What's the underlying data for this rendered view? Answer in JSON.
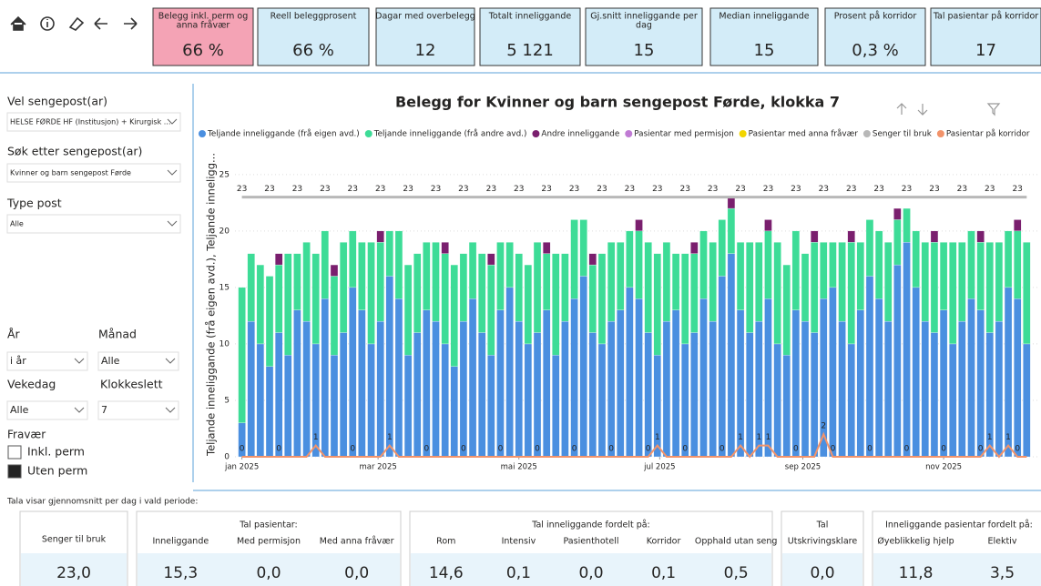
{
  "kpis": [
    {
      "label": [
        "Belegg inkl. perm og",
        "anna fråvær"
      ],
      "value": "66 %"
    },
    {
      "label": [
        "Reell beleggprosent"
      ],
      "value": "66 %"
    },
    {
      "label": [
        "Dagar med overbelegg"
      ],
      "value": "12"
    },
    {
      "label": [
        "Totalt inneliggande"
      ],
      "value": "5 121"
    },
    {
      "label": [
        "Gj.snitt inneliggande per",
        "dag"
      ],
      "value": "15"
    },
    {
      "label": [
        "Median inneliggande"
      ],
      "value": "15"
    },
    {
      "label": [
        "Prosent på korridor"
      ],
      "value": "0,3 %"
    },
    {
      "label": [
        "Tal pasientar på korridor"
      ],
      "value": "17"
    }
  ],
  "filters": {
    "sengepost": {
      "label": "Vel sengepost(ar)",
      "value": "HELSE FØRDE HF (Institusjon) + Kirurgisk ..."
    },
    "sok": {
      "label": "Søk etter sengepost(ar)",
      "value": "Kvinner og barn sengepost Førde"
    },
    "type": {
      "label": "Type post",
      "value": "Alle"
    },
    "ar": {
      "label": "År",
      "value": "i år"
    },
    "manad": {
      "label": "Månad",
      "value": "Alle"
    },
    "vekedag": {
      "label": "Vekedag",
      "value": "Alle"
    },
    "klokkeslett": {
      "label": "Klokkeslett",
      "value": "7"
    },
    "fravaer": {
      "label": "Fravær",
      "options": [
        "Inkl. perm",
        "Uten perm"
      ]
    }
  },
  "chart_data": {
    "type": "bar",
    "title": "Belegg for Kvinner og barn sengepost Førde, klokka 7",
    "y_label": "Teljande inneliggande (frå eigen avd.), Teljande inneligg...",
    "x": [
      1,
      5,
      9,
      13,
      17,
      21,
      25,
      29,
      33,
      37,
      41,
      45,
      49,
      53,
      57,
      61,
      65,
      69,
      73,
      77,
      81,
      85,
      89,
      93,
      97,
      101,
      105,
      109,
      113,
      117,
      121,
      125,
      129,
      133,
      137,
      141,
      145,
      149,
      153,
      157,
      161,
      165,
      169,
      173,
      177,
      181,
      185,
      189,
      193,
      197,
      201,
      205,
      209,
      213,
      217,
      221,
      225,
      229,
      233,
      237,
      241,
      245,
      249,
      253,
      257,
      261,
      265,
      269,
      273,
      277,
      281,
      285,
      289,
      293,
      297,
      301,
      305,
      309,
      313,
      317,
      321,
      325,
      329,
      333,
      337,
      341
    ],
    "xlim": [
      -2,
      346
    ],
    "xticks": [
      {
        "value": 1,
        "label": "jan 2025"
      },
      {
        "value": 60,
        "label": "mar 2025"
      },
      {
        "value": 121,
        "label": "mai 2025"
      },
      {
        "value": 182,
        "label": "jul 2025"
      },
      {
        "value": 244,
        "label": "sep 2025"
      },
      {
        "value": 305,
        "label": "nov 2025"
      }
    ],
    "ylim": [
      0,
      27
    ],
    "yticks": [
      0,
      5,
      10,
      15,
      20,
      25
    ],
    "grid": true,
    "series": [
      {
        "name": "Teljande inneliggande (frå eigen avd.)",
        "color": "#4a8fe0",
        "values": [
          3,
          12,
          10,
          8,
          11,
          9,
          13,
          12,
          10,
          14,
          9,
          11,
          15,
          13,
          10,
          12,
          16,
          14,
          9,
          11,
          13,
          12,
          10,
          8,
          12,
          14,
          11,
          9,
          13,
          15,
          12,
          10,
          11,
          13,
          9,
          12,
          14,
          16,
          11,
          10,
          12,
          13,
          15,
          14,
          11,
          9,
          12,
          13,
          10,
          11,
          14,
          12,
          16,
          18,
          13,
          11,
          12,
          14,
          10,
          9,
          13,
          12,
          11,
          14,
          15,
          12,
          10,
          13,
          16,
          14,
          12,
          17,
          19,
          15,
          12,
          11,
          13,
          10,
          12,
          14,
          13,
          11,
          12,
          15,
          14,
          10
        ]
      },
      {
        "name": "Teljande inneliggande (frå andre avd.)",
        "color": "#3ddc97",
        "values": [
          12,
          6,
          7,
          8,
          6,
          9,
          5,
          7,
          8,
          6,
          7,
          8,
          5,
          6,
          9,
          7,
          4,
          6,
          8,
          7,
          6,
          7,
          8,
          9,
          6,
          5,
          7,
          8,
          6,
          4,
          6,
          7,
          8,
          5,
          9,
          6,
          7,
          5,
          6,
          8,
          7,
          6,
          5,
          6,
          8,
          9,
          7,
          5,
          8,
          7,
          6,
          7,
          5,
          4,
          6,
          8,
          7,
          6,
          9,
          8,
          7,
          6,
          8,
          5,
          4,
          7,
          9,
          6,
          5,
          6,
          7,
          4,
          3,
          5,
          7,
          8,
          6,
          9,
          7,
          6,
          6,
          8,
          7,
          5,
          6,
          9
        ]
      },
      {
        "name": "Andre inneliggande",
        "color": "#7a1f6e",
        "values": [
          0,
          0,
          0,
          0,
          1,
          0,
          0,
          0,
          0,
          0,
          1,
          0,
          0,
          0,
          0,
          1,
          0,
          0,
          0,
          0,
          0,
          0,
          1,
          0,
          0,
          0,
          0,
          1,
          0,
          0,
          0,
          0,
          0,
          1,
          0,
          0,
          0,
          0,
          1,
          0,
          0,
          0,
          0,
          1,
          0,
          0,
          0,
          0,
          0,
          1,
          0,
          0,
          0,
          1,
          0,
          0,
          0,
          1,
          0,
          0,
          0,
          0,
          1,
          0,
          0,
          0,
          1,
          0,
          0,
          0,
          0,
          1,
          0,
          0,
          0,
          1,
          0,
          0,
          0,
          0,
          1,
          0,
          0,
          0,
          1,
          0
        ]
      },
      {
        "name": "Pasientar med permisjon",
        "color": "#c07bd4",
        "values": [
          0,
          0,
          0,
          0,
          0,
          0,
          0,
          0,
          0,
          0,
          0,
          0,
          0,
          0,
          0,
          0,
          0,
          0,
          0,
          0,
          0,
          0,
          0,
          0,
          0,
          0,
          0,
          0,
          0,
          0,
          0,
          0,
          0,
          0,
          0,
          0,
          0,
          0,
          0,
          0,
          0,
          0,
          0,
          0,
          0,
          0,
          0,
          0,
          0,
          0,
          0,
          0,
          0,
          0,
          0,
          0,
          0,
          0,
          0,
          0,
          0,
          0,
          0,
          0,
          0,
          0,
          0,
          0,
          0,
          0,
          0,
          0,
          0,
          0,
          0,
          0,
          0,
          0,
          0,
          0,
          0,
          0,
          0,
          0,
          0,
          0
        ]
      },
      {
        "name": "Pasientar med anna fråvær",
        "color": "#f2d500",
        "values": [
          0,
          0,
          0,
          0,
          0,
          0,
          0,
          0,
          0,
          0,
          0,
          0,
          0,
          0,
          0,
          0,
          0,
          0,
          0,
          0,
          0,
          0,
          0,
          0,
          0,
          0,
          0,
          0,
          0,
          0,
          0,
          0,
          0,
          0,
          0,
          0,
          0,
          0,
          0,
          0,
          0,
          0,
          0,
          0,
          0,
          0,
          0,
          0,
          0,
          0,
          0,
          0,
          0,
          0,
          0,
          0,
          0,
          0,
          0,
          0,
          0,
          0,
          0,
          0,
          0,
          0,
          0,
          0,
          0,
          0,
          0,
          0,
          0,
          0,
          0,
          0,
          0,
          0,
          0,
          0,
          0,
          0,
          0,
          0,
          0,
          0
        ]
      },
      {
        "name": "Senger til bruk",
        "color": "#b8b8b8",
        "values": [
          23,
          23,
          23,
          23,
          23,
          23,
          23,
          23,
          23,
          23,
          23,
          23,
          23,
          23,
          23,
          23,
          23,
          23,
          23,
          23,
          23,
          23,
          23,
          23,
          23,
          23,
          23,
          23,
          23,
          23,
          23,
          23,
          23,
          23,
          23,
          23,
          23,
          23,
          23,
          23,
          23,
          23,
          23,
          23,
          23,
          23,
          23,
          23,
          23,
          23,
          23,
          23,
          23,
          23,
          23,
          23,
          23,
          23,
          23,
          23,
          23,
          23,
          23,
          23,
          23,
          23,
          23,
          23,
          23,
          23,
          23,
          23,
          23,
          23,
          23,
          23,
          23,
          23,
          23,
          23,
          23,
          23,
          23,
          23,
          23,
          23
        ]
      },
      {
        "name": "Pasientar på korridor",
        "color": "#f2936a",
        "values": [
          0,
          0,
          0,
          0,
          0,
          0,
          0,
          0,
          1,
          0,
          0,
          0,
          0,
          0,
          0,
          0,
          1,
          0,
          0,
          0,
          0,
          0,
          0,
          0,
          0,
          0,
          0,
          0,
          0,
          0,
          0,
          0,
          0,
          0,
          0,
          0,
          0,
          0,
          0,
          0,
          0,
          0,
          0,
          0,
          0,
          1,
          0,
          0,
          0,
          0,
          0,
          0,
          0,
          0,
          1,
          0,
          1,
          1,
          0,
          0,
          0,
          0,
          0,
          2,
          0,
          0,
          0,
          0,
          0,
          0,
          0,
          0,
          0,
          0,
          0,
          0,
          0,
          0,
          0,
          0,
          0,
          1,
          0,
          1,
          0,
          0
        ]
      }
    ]
  },
  "note": "Tala visar gjennomsnitt per dag i vald periode:",
  "summary": [
    {
      "title": null,
      "items": [
        {
          "label": "Senger til bruk",
          "value": "23,0"
        }
      ]
    },
    {
      "title": "Tal pasientar:",
      "items": [
        {
          "label": "Inneliggande",
          "value": "15,3"
        },
        {
          "label": "Med permisjon",
          "value": "0,0"
        },
        {
          "label": "Med anna fråvær",
          "value": "0,0"
        }
      ]
    },
    {
      "title": "Tal inneliggande fordelt på:",
      "items": [
        {
          "label": "Rom",
          "value": "14,6"
        },
        {
          "label": "Intensiv",
          "value": "0,1"
        },
        {
          "label": "Pasienthotell",
          "value": "0,0"
        },
        {
          "label": "Korridor",
          "value": "0,1"
        },
        {
          "label": "Opphald utan seng",
          "value": "0,5"
        }
      ]
    },
    {
      "title": "Tal",
      "items": [
        {
          "label": "Utskrivingsklare",
          "value": "0,0"
        }
      ]
    },
    {
      "title": "Inneliggande pasientar fordelt på:",
      "items": [
        {
          "label": "Øyeblikkelig hjelp",
          "value": "11,8"
        },
        {
          "label": "Elektiv",
          "value": "3,5"
        }
      ]
    }
  ]
}
